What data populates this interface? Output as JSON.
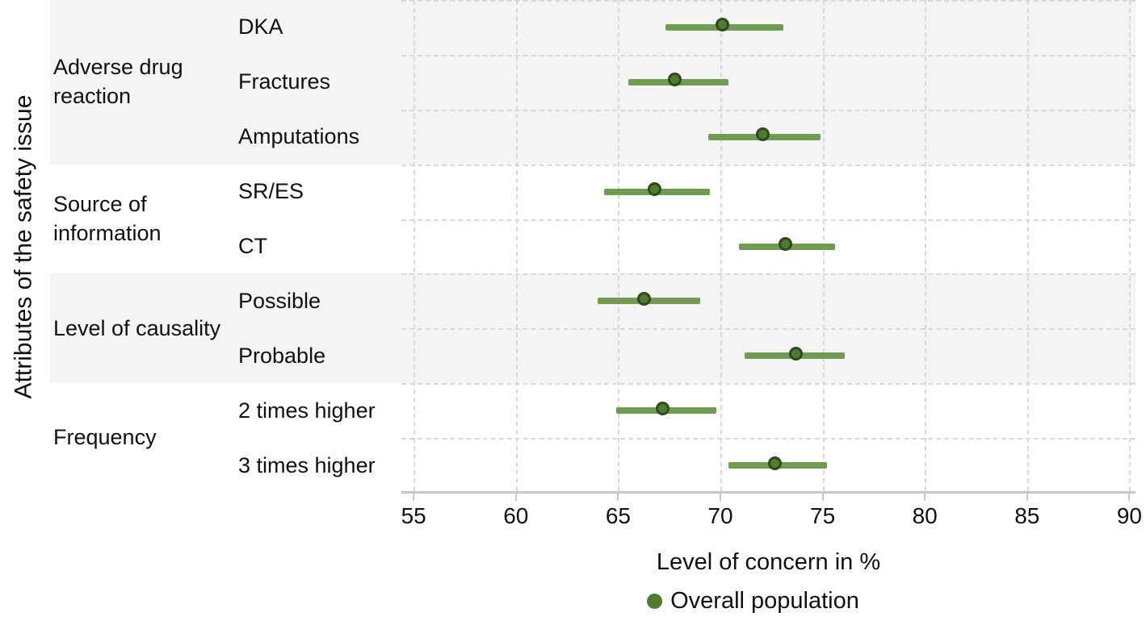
{
  "chart_data": {
    "type": "scatter",
    "subtype": "dot-and-interval (forest) plot",
    "title": "",
    "xlabel": "Level of concern in %",
    "ylabel": "Attributes of the safety issue",
    "xlim": [
      54.4,
      90.3
    ],
    "xticks": [
      55,
      60,
      65,
      70,
      75,
      80,
      85,
      90
    ],
    "grid": "dashed vertical at each x tick, dashed horizontal between rows",
    "legend_position": "bottom center",
    "legend": [
      {
        "label": "Overall population",
        "color": "#4e7b2f"
      }
    ],
    "groups": [
      {
        "label": "Adverse drug reaction",
        "shaded": true,
        "items": [
          {
            "label": "DKA",
            "value": 70.2,
            "ci_low": 67.3,
            "ci_high": 73.1
          },
          {
            "label": "Fractures",
            "value": 67.9,
            "ci_low": 65.5,
            "ci_high": 70.4
          },
          {
            "label": "Amputations",
            "value": 72.2,
            "ci_low": 69.4,
            "ci_high": 74.9
          }
        ]
      },
      {
        "label": "Source of information",
        "shaded": false,
        "items": [
          {
            "label": "SR/ES",
            "value": 66.9,
            "ci_low": 64.3,
            "ci_high": 69.5
          },
          {
            "label": "CT",
            "value": 73.3,
            "ci_low": 70.9,
            "ci_high": 75.6
          }
        ]
      },
      {
        "label": "Level of causality",
        "shaded": true,
        "items": [
          {
            "label": "Possible",
            "value": 66.4,
            "ci_low": 64.0,
            "ci_high": 69.0
          },
          {
            "label": "Probable",
            "value": 73.8,
            "ci_low": 71.2,
            "ci_high": 76.1
          }
        ]
      },
      {
        "label": "Frequency",
        "shaded": false,
        "items": [
          {
            "label": "2 times higher",
            "value": 67.3,
            "ci_low": 64.9,
            "ci_high": 69.8
          },
          {
            "label": "3 times higher",
            "value": 72.8,
            "ci_low": 70.4,
            "ci_high": 75.2
          }
        ]
      }
    ],
    "colors": {
      "interval_bar": "#6f9c50",
      "point_fill": "#4e7b2f",
      "point_stroke": "#2e4a1c",
      "band_shade": "#f4f4f4",
      "gridline": "#d9d9d9",
      "axis_line": "#c8c8c8",
      "text": "#111111"
    }
  }
}
